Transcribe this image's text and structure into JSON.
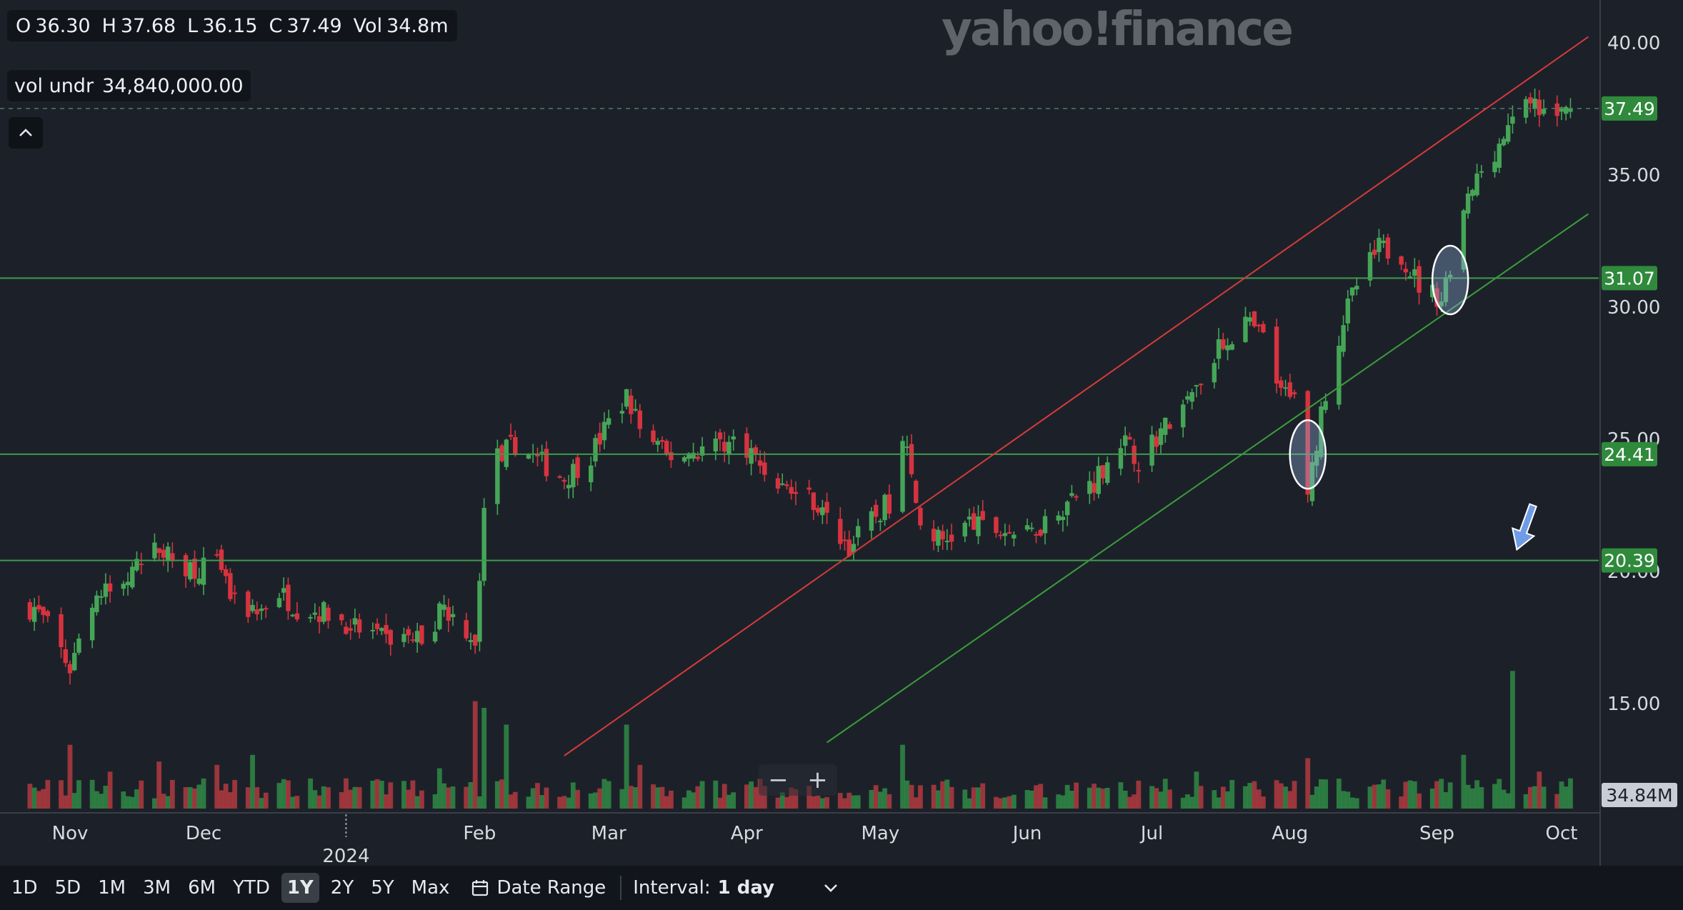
{
  "ohlc": {
    "o_label": "O",
    "o": "36.30",
    "h_label": "H",
    "h": "37.68",
    "l_label": "L",
    "l": "36.15",
    "c_label": "C",
    "c": "37.49",
    "vol_label": "Vol",
    "vol": "34.8m"
  },
  "volume_info": {
    "label": "vol undr",
    "value": "34,840,000.00"
  },
  "collapse_icon": "chevron-up-icon",
  "watermark": "yahoo!finance",
  "zoom": {
    "minus": "−",
    "plus": "+"
  },
  "toolbar": {
    "ranges": [
      "1D",
      "5D",
      "1M",
      "3M",
      "6M",
      "YTD",
      "1Y",
      "2Y",
      "5Y",
      "Max"
    ],
    "active_range": "1Y",
    "date_range_label": "Date Range",
    "interval_label": "Interval:",
    "interval_value": "1 day"
  },
  "colors": {
    "up": "#45a557",
    "down": "#d6333f",
    "vol_up": "#2f8a45",
    "vol_down": "#b03a3f",
    "hline": "#3f9a4e",
    "upper_trend": "#d63a3a",
    "lower_trend": "#3c9c3c",
    "badge": "#2f8a3c",
    "bg": "#1c2129"
  },
  "chart_data": {
    "type": "candlestick",
    "x_tick_labels": [
      {
        "label": "Nov",
        "date": "2023-11-01"
      },
      {
        "label": "Dec",
        "date": "2023-12-01"
      },
      {
        "label": "2024",
        "date": "2024-01-02",
        "year": true
      },
      {
        "label": "Feb",
        "date": "2024-02-01"
      },
      {
        "label": "Mar",
        "date": "2024-03-01"
      },
      {
        "label": "Apr",
        "date": "2024-04-01"
      },
      {
        "label": "May",
        "date": "2024-05-01"
      },
      {
        "label": "Jun",
        "date": "2024-06-03"
      },
      {
        "label": "Jul",
        "date": "2024-07-01"
      },
      {
        "label": "Aug",
        "date": "2024-08-01"
      },
      {
        "label": "Sep",
        "date": "2024-09-03"
      },
      {
        "label": "Oct",
        "date": "2024-10-01"
      }
    ],
    "y_ticks": [
      15,
      20,
      25,
      30,
      35,
      40
    ],
    "y_tick_labels": [
      "15.00",
      "20.00",
      "25.00",
      "30.00",
      "35.00",
      "40.00"
    ],
    "ylim": [
      12.5,
      41.5
    ],
    "close_series": [
      {
        "date": "2023-10-24",
        "close": 18.6
      },
      {
        "date": "2023-10-27",
        "close": 17.9
      },
      {
        "date": "2023-11-01",
        "close": 16.3
      },
      {
        "date": "2023-11-06",
        "close": 19.0
      },
      {
        "date": "2023-11-10",
        "close": 19.2
      },
      {
        "date": "2023-11-16",
        "close": 20.0
      },
      {
        "date": "2023-11-21",
        "close": 20.9
      },
      {
        "date": "2023-11-24",
        "close": 20.4
      },
      {
        "date": "2023-11-29",
        "close": 20.1
      },
      {
        "date": "2023-12-04",
        "close": 20.2
      },
      {
        "date": "2023-12-08",
        "close": 18.7
      },
      {
        "date": "2023-12-13",
        "close": 18.4
      },
      {
        "date": "2023-12-18",
        "close": 19.2
      },
      {
        "date": "2023-12-22",
        "close": 18.6
      },
      {
        "date": "2023-12-29",
        "close": 18.4
      },
      {
        "date": "2024-01-05",
        "close": 17.8
      },
      {
        "date": "2024-01-10",
        "close": 17.4
      },
      {
        "date": "2024-01-16",
        "close": 17.5
      },
      {
        "date": "2024-01-19",
        "close": 17.4
      },
      {
        "date": "2024-01-24",
        "close": 18.6
      },
      {
        "date": "2024-01-29",
        "close": 17.8
      },
      {
        "date": "2024-01-31",
        "close": 17.4
      },
      {
        "date": "2024-02-02",
        "close": 22.0
      },
      {
        "date": "2024-02-05",
        "close": 24.3
      },
      {
        "date": "2024-02-09",
        "close": 24.8
      },
      {
        "date": "2024-02-14",
        "close": 24.2
      },
      {
        "date": "2024-02-20",
        "close": 23.5
      },
      {
        "date": "2024-02-26",
        "close": 24.4
      },
      {
        "date": "2024-03-01",
        "close": 25.6
      },
      {
        "date": "2024-03-05",
        "close": 26.6
      },
      {
        "date": "2024-03-08",
        "close": 25.4
      },
      {
        "date": "2024-03-14",
        "close": 24.3
      },
      {
        "date": "2024-03-20",
        "close": 24.5
      },
      {
        "date": "2024-03-26",
        "close": 24.9
      },
      {
        "date": "2024-04-01",
        "close": 24.7
      },
      {
        "date": "2024-04-05",
        "close": 23.8
      },
      {
        "date": "2024-04-10",
        "close": 23.1
      },
      {
        "date": "2024-04-16",
        "close": 22.7
      },
      {
        "date": "2024-04-19",
        "close": 21.9
      },
      {
        "date": "2024-04-24",
        "close": 20.9
      },
      {
        "date": "2024-04-29",
        "close": 21.9
      },
      {
        "date": "2024-05-03",
        "close": 22.6
      },
      {
        "date": "2024-05-06",
        "close": 25.3
      },
      {
        "date": "2024-05-10",
        "close": 21.7
      },
      {
        "date": "2024-05-15",
        "close": 21.1
      },
      {
        "date": "2024-05-21",
        "close": 21.8
      },
      {
        "date": "2024-05-24",
        "close": 21.6
      },
      {
        "date": "2024-05-30",
        "close": 21.5
      },
      {
        "date": "2024-06-03",
        "close": 21.3
      },
      {
        "date": "2024-06-07",
        "close": 21.9
      },
      {
        "date": "2024-06-12",
        "close": 22.6
      },
      {
        "date": "2024-06-18",
        "close": 23.4
      },
      {
        "date": "2024-06-24",
        "close": 25.0
      },
      {
        "date": "2024-06-28",
        "close": 24.2
      },
      {
        "date": "2024-07-03",
        "close": 25.3
      },
      {
        "date": "2024-07-09",
        "close": 26.3
      },
      {
        "date": "2024-07-12",
        "close": 27.3
      },
      {
        "date": "2024-07-17",
        "close": 28.6
      },
      {
        "date": "2024-07-22",
        "close": 29.4
      },
      {
        "date": "2024-07-26",
        "close": 28.8
      },
      {
        "date": "2024-07-30",
        "close": 26.6
      },
      {
        "date": "2024-08-02",
        "close": 27.0
      },
      {
        "date": "2024-08-05",
        "close": 22.7
      },
      {
        "date": "2024-08-08",
        "close": 26.1
      },
      {
        "date": "2024-08-13",
        "close": 29.5
      },
      {
        "date": "2024-08-16",
        "close": 30.8
      },
      {
        "date": "2024-08-21",
        "close": 32.2
      },
      {
        "date": "2024-08-26",
        "close": 32.0
      },
      {
        "date": "2024-08-30",
        "close": 30.8
      },
      {
        "date": "2024-09-04",
        "close": 30.3
      },
      {
        "date": "2024-09-09",
        "close": 33.6
      },
      {
        "date": "2024-09-13",
        "close": 35.2
      },
      {
        "date": "2024-09-18",
        "close": 36.4
      },
      {
        "date": "2024-09-23",
        "close": 37.5
      },
      {
        "date": "2024-09-26",
        "close": 37.4
      },
      {
        "date": "2024-10-01",
        "close": 37.3
      },
      {
        "date": "2024-10-03",
        "close": 37.49
      }
    ],
    "horizontal_lines": [
      {
        "value": 31.07,
        "label": "31.07"
      },
      {
        "value": 24.41,
        "label": "24.41"
      },
      {
        "value": 20.39,
        "label": "20.39"
      }
    ],
    "last_price": {
      "value": 37.49,
      "label": "37.49"
    },
    "trendlines": [
      {
        "name": "upper",
        "from": {
          "date": "2024-02-20",
          "value": 13.0
        },
        "to": {
          "date": "2024-10-07",
          "value": 40.2
        }
      },
      {
        "name": "lower",
        "from": {
          "date": "2024-04-19",
          "value": 13.5
        },
        "to": {
          "date": "2024-10-07",
          "value": 33.5
        }
      }
    ],
    "volume_label": "34.84M",
    "volume_bars": [
      {
        "date": "2023-11-01",
        "volume": 19
      },
      {
        "date": "2023-11-10",
        "volume": 11
      },
      {
        "date": "2023-11-21",
        "volume": 14
      },
      {
        "date": "2023-12-04",
        "volume": 13
      },
      {
        "date": "2023-12-12",
        "volume": 16
      },
      {
        "date": "2024-01-02",
        "volume": 9
      },
      {
        "date": "2024-01-23",
        "volume": 12
      },
      {
        "date": "2024-01-31",
        "volume": 32
      },
      {
        "date": "2024-02-02",
        "volume": 30
      },
      {
        "date": "2024-02-07",
        "volume": 25
      },
      {
        "date": "2024-03-05",
        "volume": 25
      },
      {
        "date": "2024-03-08",
        "volume": 13
      },
      {
        "date": "2024-05-06",
        "volume": 19
      },
      {
        "date": "2024-07-11",
        "volume": 11
      },
      {
        "date": "2024-08-05",
        "volume": 15
      },
      {
        "date": "2024-09-09",
        "volume": 16
      },
      {
        "date": "2024-09-20",
        "volume": 41
      },
      {
        "date": "2024-09-26",
        "volume": 11
      },
      {
        "date": "2024-10-03",
        "volume": 9
      }
    ],
    "annotations": [
      {
        "type": "ellipse",
        "date": "2024-08-05",
        "value": 24.4
      },
      {
        "type": "ellipse",
        "date": "2024-09-06",
        "value": 31.0
      },
      {
        "type": "arrow",
        "date": "2024-09-20",
        "value": 20.8
      }
    ]
  }
}
